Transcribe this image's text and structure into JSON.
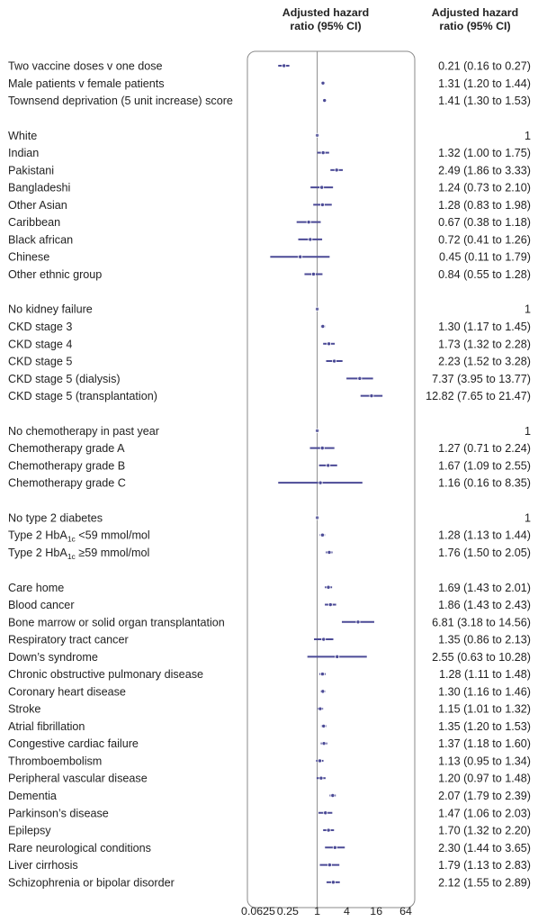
{
  "chart_data": {
    "type": "forest",
    "headers": {
      "plot_column": [
        "Adjusted hazard",
        "ratio (95% CI)"
      ],
      "value_column": [
        "Adjusted hazard",
        "ratio (95% CI)"
      ]
    },
    "x_scale": "log2",
    "xlim": [
      0.0625,
      64
    ],
    "x_ticks": [
      0.0625,
      0.25,
      1,
      4,
      16,
      64
    ],
    "x_tick_labels": [
      "0.0625",
      "0.25",
      "1",
      "4",
      "16",
      "64"
    ],
    "reference_line": 1,
    "marker_color": "#4b4a96",
    "groups": [
      {
        "rows": [
          {
            "label": "Two vaccine doses v one dose",
            "hr": 0.21,
            "lo": 0.16,
            "hi": 0.27,
            "text": "0.21 (0.16 to 0.27)"
          },
          {
            "label": "Male patients v female patients",
            "hr": 1.31,
            "lo": 1.2,
            "hi": 1.44,
            "text": "1.31 (1.20 to 1.44)"
          },
          {
            "label": "Townsend deprivation (5 unit increase) score",
            "hr": 1.41,
            "lo": 1.3,
            "hi": 1.53,
            "text": "1.41 (1.30 to 1.53)"
          }
        ]
      },
      {
        "rows": [
          {
            "label": "White",
            "hr": 1,
            "lo": null,
            "hi": null,
            "text": "1"
          },
          {
            "label": "Indian",
            "hr": 1.32,
            "lo": 1.0,
            "hi": 1.75,
            "text": "1.32 (1.00 to 1.75)"
          },
          {
            "label": "Pakistani",
            "hr": 2.49,
            "lo": 1.86,
            "hi": 3.33,
            "text": "2.49 (1.86 to 3.33)"
          },
          {
            "label": "Bangladeshi",
            "hr": 1.24,
            "lo": 0.73,
            "hi": 2.1,
            "text": "1.24 (0.73 to 2.10)"
          },
          {
            "label": "Other Asian",
            "hr": 1.28,
            "lo": 0.83,
            "hi": 1.98,
            "text": "1.28 (0.83 to 1.98)"
          },
          {
            "label": "Caribbean",
            "hr": 0.67,
            "lo": 0.38,
            "hi": 1.18,
            "text": "0.67 (0.38 to 1.18)"
          },
          {
            "label": "Black african",
            "hr": 0.72,
            "lo": 0.41,
            "hi": 1.26,
            "text": "0.72 (0.41 to 1.26)"
          },
          {
            "label": "Chinese",
            "hr": 0.45,
            "lo": 0.11,
            "hi": 1.79,
            "text": "0.45 (0.11 to 1.79)"
          },
          {
            "label": "Other ethnic group",
            "hr": 0.84,
            "lo": 0.55,
            "hi": 1.28,
            "text": "0.84 (0.55 to 1.28)"
          }
        ]
      },
      {
        "rows": [
          {
            "label": "No kidney failure",
            "hr": 1,
            "lo": null,
            "hi": null,
            "text": "1"
          },
          {
            "label": "CKD stage 3",
            "hr": 1.3,
            "lo": 1.17,
            "hi": 1.45,
            "text": "1.30 (1.17 to 1.45)"
          },
          {
            "label": "CKD stage 4",
            "hr": 1.73,
            "lo": 1.32,
            "hi": 2.28,
            "text": "1.73 (1.32 to 2.28)"
          },
          {
            "label": "CKD stage 5",
            "hr": 2.23,
            "lo": 1.52,
            "hi": 3.28,
            "text": "2.23 (1.52 to 3.28)"
          },
          {
            "label": "CKD stage 5 (dialysis)",
            "hr": 7.37,
            "lo": 3.95,
            "hi": 13.77,
            "text": "7.37 (3.95 to 13.77)"
          },
          {
            "label": "CKD stage 5 (transplantation)",
            "hr": 12.82,
            "lo": 7.65,
            "hi": 21.47,
            "text": "12.82 (7.65 to 21.47)"
          }
        ]
      },
      {
        "rows": [
          {
            "label": "No chemotherapy in past year",
            "hr": 1,
            "lo": null,
            "hi": null,
            "text": "1"
          },
          {
            "label": "Chemotherapy grade A",
            "hr": 1.27,
            "lo": 0.71,
            "hi": 2.24,
            "text": "1.27 (0.71 to 2.24)"
          },
          {
            "label": "Chemotherapy grade B",
            "hr": 1.67,
            "lo": 1.09,
            "hi": 2.55,
            "text": "1.67 (1.09 to 2.55)"
          },
          {
            "label": "Chemotherapy grade C",
            "hr": 1.16,
            "lo": 0.16,
            "hi": 8.35,
            "text": "1.16 (0.16 to 8.35)"
          }
        ]
      },
      {
        "rows": [
          {
            "label": "No type 2 diabetes",
            "hr": 1,
            "lo": null,
            "hi": null,
            "text": "1"
          },
          {
            "label": "Type 2 HbA1c <59 mmol/mol",
            "label_parts": [
              "Type 2 HbA",
              "1c",
              " <59 mmol/mol"
            ],
            "hr": 1.28,
            "lo": 1.13,
            "hi": 1.44,
            "text": "1.28 (1.13 to 1.44)"
          },
          {
            "label": "Type 2 HbA1c ≥59 mmol/mol",
            "label_parts": [
              "Type 2 HbA",
              "1c",
              " ≥59 mmol/mol"
            ],
            "hr": 1.76,
            "lo": 1.5,
            "hi": 2.05,
            "text": "1.76 (1.50 to 2.05)"
          }
        ]
      },
      {
        "rows": [
          {
            "label": "Care home",
            "hr": 1.69,
            "lo": 1.43,
            "hi": 2.01,
            "text": "1.69 (1.43 to 2.01)"
          },
          {
            "label": "Blood cancer",
            "hr": 1.86,
            "lo": 1.43,
            "hi": 2.43,
            "text": "1.86 (1.43 to 2.43)"
          },
          {
            "label": "Bone marrow or solid organ transplantation",
            "hr": 6.81,
            "lo": 3.18,
            "hi": 14.56,
            "text": "6.81 (3.18 to 14.56)"
          },
          {
            "label": "Respiratory tract cancer",
            "hr": 1.35,
            "lo": 0.86,
            "hi": 2.13,
            "text": "1.35 (0.86 to 2.13)"
          },
          {
            "label": "Down’s syndrome",
            "hr": 2.55,
            "lo": 0.63,
            "hi": 10.28,
            "text": "2.55 (0.63 to 10.28)"
          },
          {
            "label": "Chronic obstructive pulmonary disease",
            "hr": 1.28,
            "lo": 1.11,
            "hi": 1.48,
            "text": "1.28 (1.11 to 1.48)"
          },
          {
            "label": "Coronary heart disease",
            "hr": 1.3,
            "lo": 1.16,
            "hi": 1.46,
            "text": "1.30 (1.16 to 1.46)"
          },
          {
            "label": "Stroke",
            "hr": 1.15,
            "lo": 1.01,
            "hi": 1.32,
            "text": "1.15 (1.01 to 1.32)"
          },
          {
            "label": "Atrial fibrillation",
            "hr": 1.35,
            "lo": 1.2,
            "hi": 1.53,
            "text": "1.35 (1.20 to 1.53)"
          },
          {
            "label": "Congestive cardiac failure",
            "hr": 1.37,
            "lo": 1.18,
            "hi": 1.6,
            "text": "1.37 (1.18 to 1.60)"
          },
          {
            "label": "Thromboembolism",
            "hr": 1.13,
            "lo": 0.95,
            "hi": 1.34,
            "text": "1.13 (0.95 to 1.34)"
          },
          {
            "label": "Peripheral vascular disease",
            "hr": 1.2,
            "lo": 0.97,
            "hi": 1.48,
            "text": "1.20 (0.97 to 1.48)"
          },
          {
            "label": "Dementia",
            "hr": 2.07,
            "lo": 1.79,
            "hi": 2.39,
            "text": "2.07 (1.79 to 2.39)"
          },
          {
            "label": "Parkinson’s disease",
            "hr": 1.47,
            "lo": 1.06,
            "hi": 2.03,
            "text": "1.47 (1.06 to 2.03)"
          },
          {
            "label": "Epilepsy",
            "hr": 1.7,
            "lo": 1.32,
            "hi": 2.2,
            "text": "1.70 (1.32 to 2.20)"
          },
          {
            "label": "Rare neurological conditions",
            "hr": 2.3,
            "lo": 1.44,
            "hi": 3.65,
            "text": "2.30 (1.44 to 3.65)"
          },
          {
            "label": "Liver cirrhosis",
            "hr": 1.79,
            "lo": 1.13,
            "hi": 2.83,
            "text": "1.79 (1.13 to 2.83)"
          },
          {
            "label": "Schizophrenia or bipolar disorder",
            "hr": 2.12,
            "lo": 1.55,
            "hi": 2.89,
            "text": "2.12 (1.55 to 2.89)"
          }
        ]
      }
    ]
  }
}
